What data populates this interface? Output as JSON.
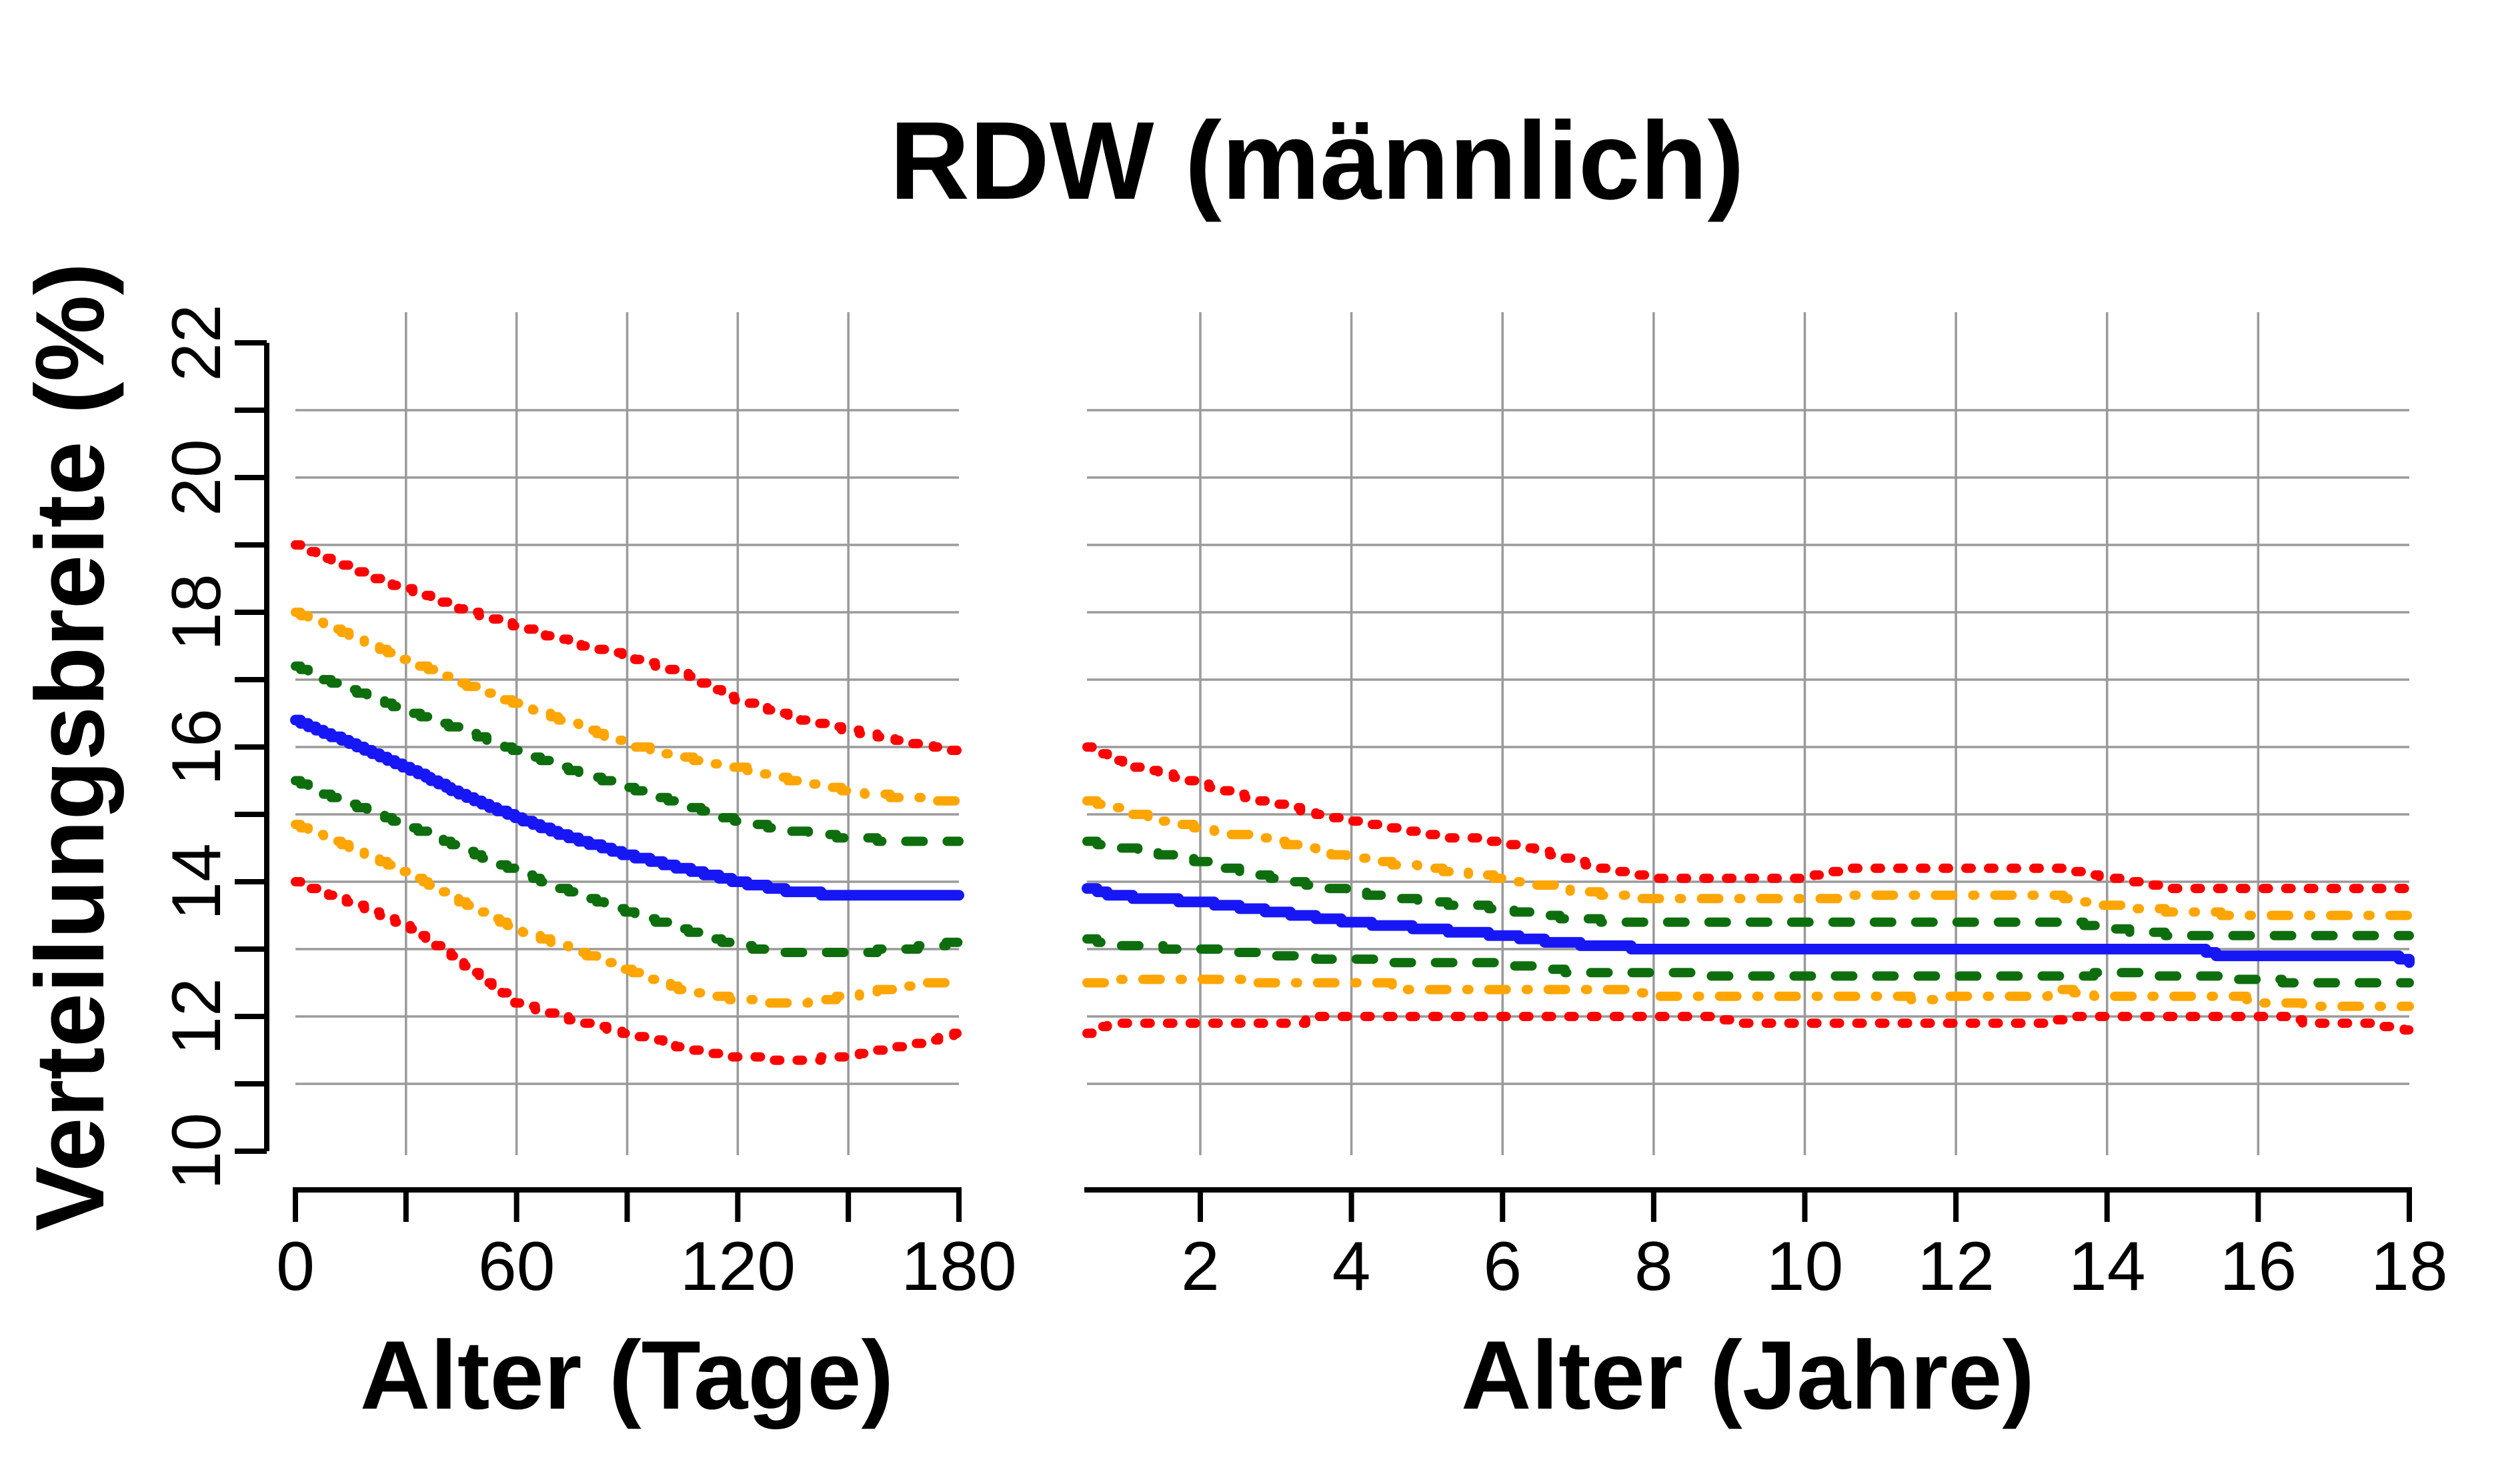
{
  "chart_data": {
    "type": "line",
    "title": "RDW (männlich)",
    "background": "#ffffff",
    "grid": {
      "on": true,
      "color": "#9A9A9A"
    },
    "axis_color": "#000000",
    "y_axis": {
      "title": "Verteilungsbreite (%)",
      "min": 10,
      "max": 22,
      "ticks": [
        10,
        11,
        12,
        13,
        14,
        15,
        16,
        17,
        18,
        19,
        20,
        21,
        22
      ],
      "labeled": [
        10,
        12,
        14,
        16,
        18,
        20,
        22
      ],
      "grid_values": [
        11,
        12,
        13,
        14,
        15,
        16,
        17,
        18,
        19,
        20,
        21
      ]
    },
    "panels": [
      {
        "id": "days",
        "x_title": "Alter (Tage)",
        "x_min": 0,
        "x_max": 180,
        "ticks": [
          0,
          30,
          60,
          90,
          120,
          150,
          180
        ],
        "labeled": [
          0,
          60,
          120,
          180
        ],
        "grid_x": [
          30,
          60,
          90,
          120,
          150
        ],
        "series": [
          {
            "id": "upper-outer-dotted-red",
            "color": "#FF0000",
            "style": "dotted",
            "width": 14,
            "points": [
              [
                0,
                19.0
              ],
              [
                15,
                18.65
              ],
              [
                30,
                18.35
              ],
              [
                45,
                18.05
              ],
              [
                60,
                17.8
              ],
              [
                75,
                17.55
              ],
              [
                90,
                17.35
              ],
              [
                105,
                17.1
              ],
              [
                120,
                16.7
              ],
              [
                135,
                16.45
              ],
              [
                150,
                16.25
              ],
              [
                165,
                16.1
              ],
              [
                180,
                15.95
              ]
            ]
          },
          {
            "id": "upper-middle-dotdash-orange",
            "color": "#FFA500",
            "style": "dotdash",
            "width": 14,
            "points": [
              [
                0,
                18.0
              ],
              [
                15,
                17.65
              ],
              [
                30,
                17.3
              ],
              [
                45,
                16.95
              ],
              [
                60,
                16.65
              ],
              [
                75,
                16.35
              ],
              [
                90,
                16.05
              ],
              [
                105,
                15.85
              ],
              [
                120,
                15.7
              ],
              [
                135,
                15.5
              ],
              [
                150,
                15.35
              ],
              [
                165,
                15.25
              ],
              [
                180,
                15.2
              ]
            ]
          },
          {
            "id": "upper-inner-dashed-green",
            "color": "#0E6E0E",
            "style": "dashed",
            "width": 14,
            "points": [
              [
                0,
                17.2
              ],
              [
                15,
                16.85
              ],
              [
                30,
                16.55
              ],
              [
                45,
                16.25
              ],
              [
                60,
                15.95
              ],
              [
                75,
                15.65
              ],
              [
                90,
                15.4
              ],
              [
                105,
                15.15
              ],
              [
                120,
                14.9
              ],
              [
                135,
                14.75
              ],
              [
                150,
                14.65
              ],
              [
                165,
                14.6
              ],
              [
                180,
                14.6
              ]
            ]
          },
          {
            "id": "median-solid-blue",
            "color": "#1717F5",
            "style": "solid",
            "width": 16,
            "points": [
              [
                0,
                16.4
              ],
              [
                15,
                16.05
              ],
              [
                30,
                15.7
              ],
              [
                45,
                15.3
              ],
              [
                60,
                14.95
              ],
              [
                75,
                14.65
              ],
              [
                90,
                14.4
              ],
              [
                105,
                14.2
              ],
              [
                120,
                14.0
              ],
              [
                135,
                13.85
              ],
              [
                150,
                13.8
              ],
              [
                180,
                13.8
              ]
            ]
          },
          {
            "id": "lower-inner-dashed-green",
            "color": "#0E6E0E",
            "style": "dashed",
            "width": 14,
            "points": [
              [
                0,
                15.5
              ],
              [
                15,
                15.15
              ],
              [
                30,
                14.85
              ],
              [
                45,
                14.5
              ],
              [
                60,
                14.15
              ],
              [
                75,
                13.85
              ],
              [
                90,
                13.55
              ],
              [
                105,
                13.3
              ],
              [
                120,
                13.05
              ],
              [
                135,
                12.95
              ],
              [
                150,
                12.95
              ],
              [
                165,
                13.0
              ],
              [
                180,
                13.1
              ]
            ]
          },
          {
            "id": "lower-middle-dotdash-orange",
            "color": "#FFA500",
            "style": "dotdash",
            "width": 14,
            "points": [
              [
                0,
                14.85
              ],
              [
                15,
                14.5
              ],
              [
                30,
                14.15
              ],
              [
                45,
                13.7
              ],
              [
                60,
                13.3
              ],
              [
                75,
                13.0
              ],
              [
                90,
                12.7
              ],
              [
                105,
                12.4
              ],
              [
                120,
                12.25
              ],
              [
                135,
                12.2
              ],
              [
                150,
                12.3
              ],
              [
                165,
                12.45
              ],
              [
                180,
                12.55
              ]
            ]
          },
          {
            "id": "lower-outer-dotted-red",
            "color": "#FF0000",
            "style": "dotted",
            "width": 14,
            "points": [
              [
                0,
                14.0
              ],
              [
                15,
                13.7
              ],
              [
                30,
                13.35
              ],
              [
                45,
                12.8
              ],
              [
                60,
                12.2
              ],
              [
                75,
                11.95
              ],
              [
                90,
                11.75
              ],
              [
                105,
                11.55
              ],
              [
                120,
                11.4
              ],
              [
                135,
                11.35
              ],
              [
                150,
                11.4
              ],
              [
                165,
                11.55
              ],
              [
                180,
                11.75
              ]
            ]
          }
        ]
      },
      {
        "id": "years",
        "x_title": "Alter (Jahre)",
        "x_min": 0.5,
        "x_max": 18,
        "ticks": [
          2,
          4,
          6,
          8,
          10,
          12,
          14,
          16,
          18
        ],
        "labeled": [
          2,
          4,
          6,
          8,
          10,
          12,
          14,
          16,
          18
        ],
        "grid_x": [
          2,
          4,
          6,
          8,
          10,
          12,
          14,
          16
        ],
        "series": [
          {
            "id": "upper-outer-dotted-red",
            "color": "#FF0000",
            "style": "dotted",
            "width": 14,
            "points": [
              [
                0.5,
                16.0
              ],
              [
                1,
                15.75
              ],
              [
                2,
                15.45
              ],
              [
                3,
                15.15
              ],
              [
                4,
                14.9
              ],
              [
                5,
                14.7
              ],
              [
                6,
                14.6
              ],
              [
                7,
                14.3
              ],
              [
                7.5,
                14.15
              ],
              [
                8,
                14.05
              ],
              [
                10,
                14.05
              ],
              [
                10.5,
                14.2
              ],
              [
                13.3,
                14.2
              ],
              [
                14,
                14.05
              ],
              [
                15,
                13.9
              ],
              [
                18,
                13.9
              ]
            ]
          },
          {
            "id": "upper-middle-dotdash-orange",
            "color": "#FFA500",
            "style": "dotdash",
            "width": 14,
            "points": [
              [
                0.5,
                15.2
              ],
              [
                1,
                15.05
              ],
              [
                2,
                14.8
              ],
              [
                3,
                14.6
              ],
              [
                4,
                14.35
              ],
              [
                5,
                14.2
              ],
              [
                6,
                14.05
              ],
              [
                7,
                13.85
              ],
              [
                8,
                13.75
              ],
              [
                10.3,
                13.75
              ],
              [
                10.6,
                13.8
              ],
              [
                13.3,
                13.8
              ],
              [
                14,
                13.65
              ],
              [
                15,
                13.55
              ],
              [
                16,
                13.5
              ],
              [
                18,
                13.5
              ]
            ]
          },
          {
            "id": "upper-inner-dashed-green",
            "color": "#0E6E0E",
            "style": "dashed",
            "width": 14,
            "points": [
              [
                0.5,
                14.6
              ],
              [
                1,
                14.5
              ],
              [
                2,
                14.3
              ],
              [
                3,
                14.05
              ],
              [
                4,
                13.85
              ],
              [
                5,
                13.7
              ],
              [
                6,
                13.6
              ],
              [
                6.5,
                13.5
              ],
              [
                7,
                13.45
              ],
              [
                7.5,
                13.4
              ],
              [
                13.5,
                13.4
              ],
              [
                14,
                13.3
              ],
              [
                15,
                13.2
              ],
              [
                18,
                13.2
              ]
            ]
          },
          {
            "id": "median-solid-blue",
            "color": "#1717F5",
            "style": "solid",
            "width": 16,
            "points": [
              [
                0.5,
                13.9
              ],
              [
                0.8,
                13.8
              ],
              [
                2,
                13.7
              ],
              [
                3,
                13.55
              ],
              [
                4,
                13.4
              ],
              [
                5,
                13.3
              ],
              [
                6,
                13.2
              ],
              [
                6.7,
                13.1
              ],
              [
                8,
                13.0
              ],
              [
                15.2,
                13.0
              ],
              [
                15.5,
                12.9
              ],
              [
                17.8,
                12.9
              ],
              [
                18,
                12.8
              ]
            ]
          },
          {
            "id": "lower-inner-dashed-green",
            "color": "#0E6E0E",
            "style": "dashed",
            "width": 14,
            "points": [
              [
                0.5,
                13.15
              ],
              [
                1,
                13.05
              ],
              [
                2,
                13.0
              ],
              [
                3,
                12.9
              ],
              [
                4,
                12.85
              ],
              [
                5,
                12.8
              ],
              [
                6,
                12.8
              ],
              [
                6.6,
                12.7
              ],
              [
                7,
                12.65
              ],
              [
                8.4,
                12.65
              ],
              [
                8.7,
                12.6
              ],
              [
                13.6,
                12.6
              ],
              [
                14,
                12.65
              ],
              [
                15,
                12.6
              ],
              [
                16,
                12.55
              ],
              [
                16.5,
                12.5
              ],
              [
                18,
                12.5
              ]
            ]
          },
          {
            "id": "lower-middle-dotdash-orange",
            "color": "#FFA500",
            "style": "dotdash",
            "width": 14,
            "points": [
              [
                0.5,
                12.5
              ],
              [
                1.3,
                12.55
              ],
              [
                2.2,
                12.55
              ],
              [
                3,
                12.5
              ],
              [
                4.4,
                12.5
              ],
              [
                4.8,
                12.4
              ],
              [
                7.7,
                12.4
              ],
              [
                8,
                12.3
              ],
              [
                11.2,
                12.3
              ],
              [
                11.5,
                12.25
              ],
              [
                12.2,
                12.3
              ],
              [
                13.1,
                12.3
              ],
              [
                13.4,
                12.4
              ],
              [
                13.9,
                12.3
              ],
              [
                15.7,
                12.3
              ],
              [
                16.1,
                12.2
              ],
              [
                17,
                12.15
              ],
              [
                18,
                12.15
              ]
            ]
          },
          {
            "id": "lower-outer-dotted-red",
            "color": "#FF0000",
            "style": "dotted",
            "width": 14,
            "points": [
              [
                0.5,
                11.75
              ],
              [
                0.8,
                11.9
              ],
              [
                3.3,
                11.9
              ],
              [
                3.6,
                12.0
              ],
              [
                8.8,
                12.0
              ],
              [
                9.1,
                11.9
              ],
              [
                13.2,
                11.9
              ],
              [
                13.5,
                12.0
              ],
              [
                16.3,
                12.0
              ],
              [
                16.6,
                11.9
              ],
              [
                17.5,
                11.9
              ],
              [
                18,
                11.8
              ]
            ]
          }
        ]
      }
    ]
  }
}
